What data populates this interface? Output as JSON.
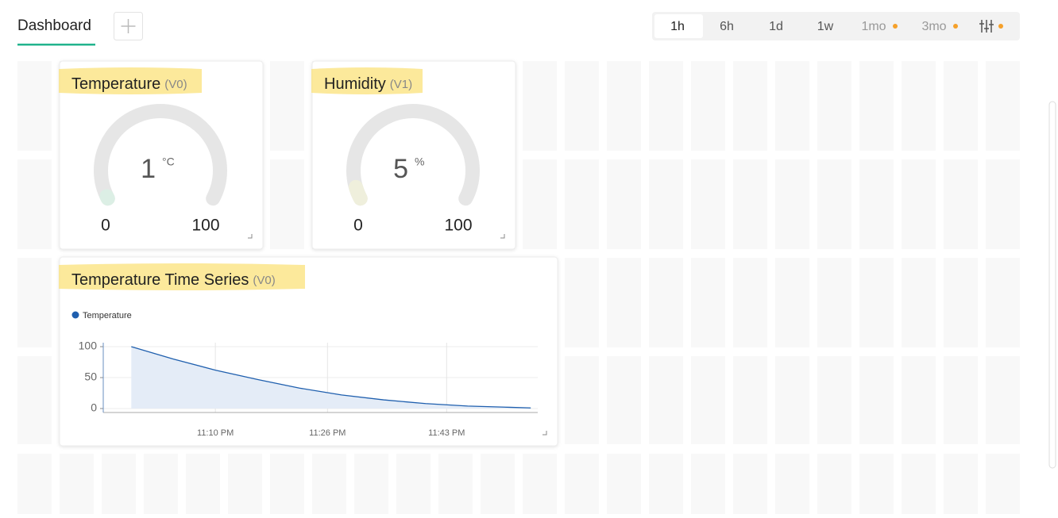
{
  "tab": "Dashboard",
  "time_ranges": [
    "1h",
    "6h",
    "1d",
    "1w",
    "1mo",
    "3mo"
  ],
  "widgets": [
    {
      "title": "Temperature",
      "pin": "(V0)",
      "value": 1,
      "unit": "°C",
      "min": 0,
      "max": 100,
      "color": "#dcefe5"
    },
    {
      "title": "Humidity",
      "pin": "(V1)",
      "value": 5,
      "unit": "%",
      "min": 0,
      "max": 100,
      "color": "#efefdc"
    }
  ],
  "chart_data": {
    "type": "line",
    "title": "Temperature Time Series",
    "pin": "(V0)",
    "x": [
      "10:58 PM",
      "11:04 PM",
      "11:10 PM",
      "11:16 PM",
      "11:22 PM",
      "11:28 PM",
      "11:34 PM",
      "11:40 PM",
      "11:46 PM",
      "11:52 PM",
      "11:55 PM"
    ],
    "series": [
      {
        "name": "Temperature",
        "color": "#1f5fae",
        "values": [
          100,
          80,
          62,
          47,
          33,
          22,
          14,
          8,
          4,
          2,
          1
        ]
      }
    ],
    "xlim": [
      "10:54 PM",
      "11:56 PM"
    ],
    "xticks": [
      "11:10 PM",
      "11:26 PM",
      "11:43 PM"
    ],
    "ylim": [
      0,
      100
    ],
    "yticks": [
      0,
      50,
      100
    ],
    "grid": true
  }
}
